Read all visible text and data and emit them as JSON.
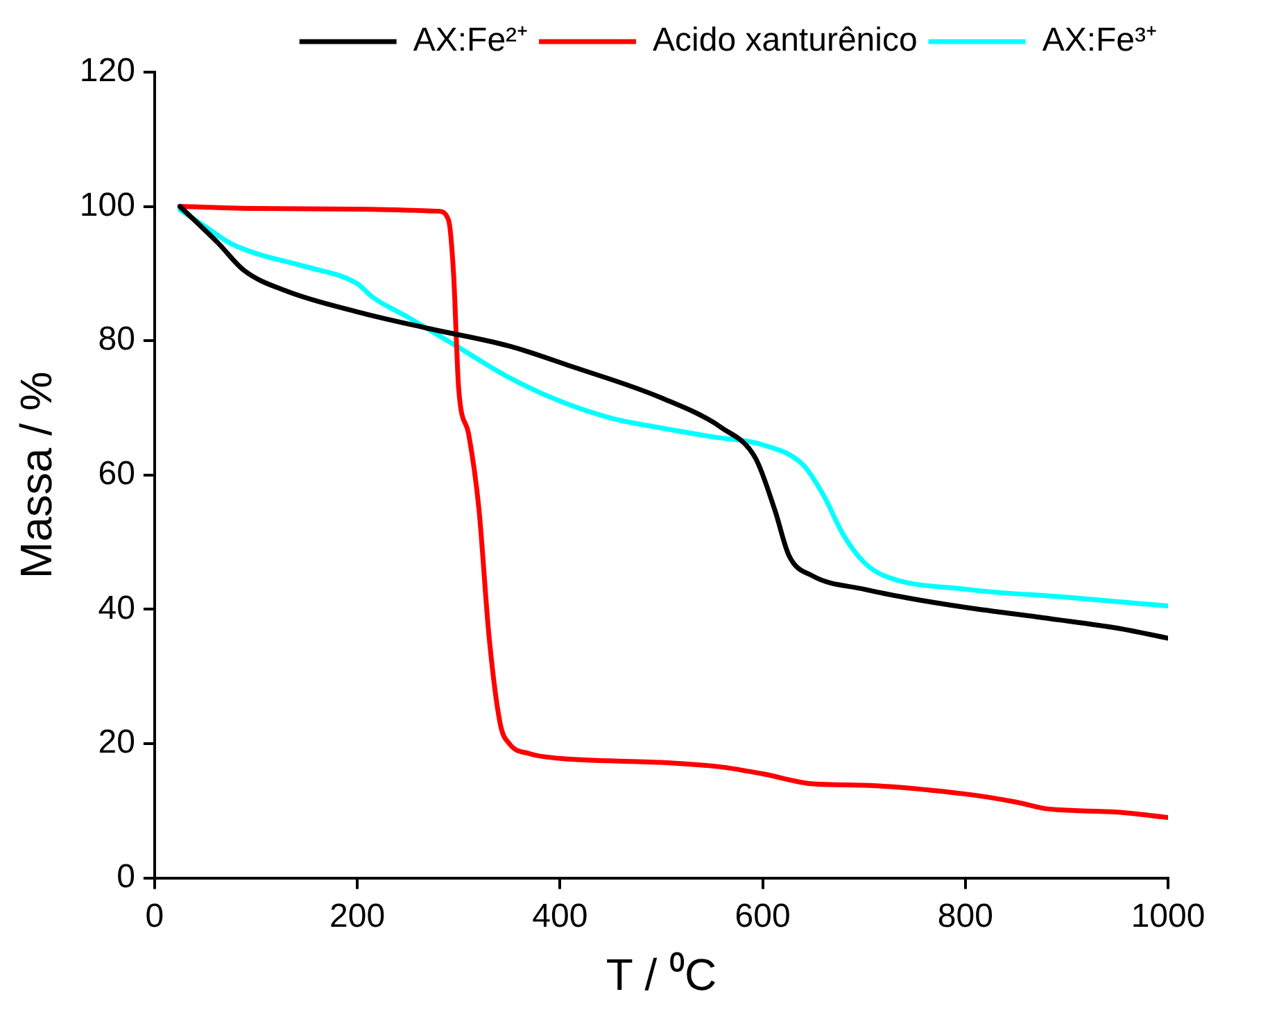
{
  "chart_data": {
    "type": "line",
    "xlabel": "T / ⁰C",
    "ylabel": "Massa / %",
    "xlim": [
      0,
      1000
    ],
    "xticks": [
      0,
      200,
      400,
      600,
      800,
      1000
    ],
    "ylim": [
      0,
      120
    ],
    "yticks": [
      0,
      20,
      40,
      60,
      80,
      100,
      120
    ],
    "grid": false,
    "legend": "top right",
    "marker": "none",
    "line_style": "solid",
    "series": [
      {
        "name": "AX:Fe²⁺",
        "color": "#000000",
        "x": [
          25,
          63,
          88,
          130,
          200,
          271,
          350,
          411,
          500,
          560,
          593,
          612,
          626,
          649,
          700,
          743,
          800,
          884,
          950,
          1000
        ],
        "values": [
          100,
          94.5,
          90.5,
          87.4,
          84.3,
          81.8,
          79.2,
          76.2,
          71.5,
          67,
          62.5,
          54.8,
          48,
          45,
          43,
          41.7,
          40.3,
          38.6,
          37.2,
          35.7
        ]
      },
      {
        "name": "Acido xanturênico",
        "color": "#ff0000",
        "x": [
          25,
          100,
          200,
          280,
          290,
          295,
          300,
          310,
          320,
          330,
          341,
          350,
          370,
          400,
          500,
          560,
          600,
          650,
          700,
          800,
          850,
          880,
          950,
          1000
        ],
        "values": [
          100,
          99.7,
          99.6,
          99.3,
          98,
          90,
          73,
          66,
          55,
          36,
          23,
          20,
          18.5,
          17.8,
          17.2,
          16.5,
          15.5,
          14,
          13.8,
          12.5,
          11.3,
          10.3,
          9.8,
          9
        ]
      },
      {
        "name": "AX:Fe³⁺",
        "color": "#00ffff",
        "x": [
          25,
          50,
          75,
          100,
          150,
          200,
          215,
          250,
          300,
          350,
          400,
          450,
          500,
          550,
          600,
          640,
          660,
          680,
          700,
          720,
          800,
          900,
          1000
        ],
        "values": [
          99.5,
          97,
          94.5,
          93,
          91,
          88.5,
          86.5,
          83.5,
          79,
          74.5,
          71,
          68.5,
          67,
          65.7,
          64.5,
          61.5,
          57,
          51,
          47,
          45,
          43,
          41.8,
          40.5
        ]
      }
    ]
  }
}
